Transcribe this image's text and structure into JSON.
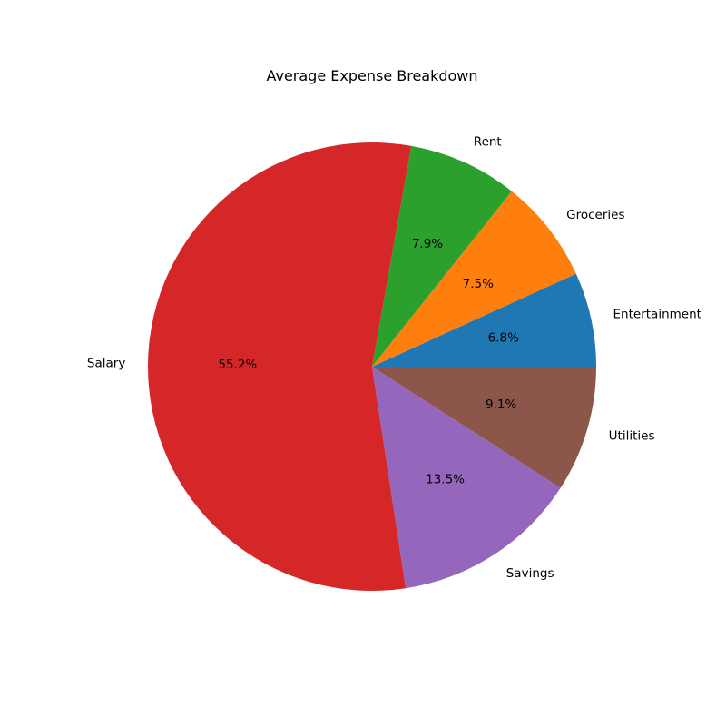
{
  "chart_data": {
    "type": "pie",
    "title": "Average Expense Breakdown",
    "slices": [
      {
        "label": "Entertainment",
        "value": 6.8,
        "pct_label": "6.8%",
        "color": "#1f77b4"
      },
      {
        "label": "Groceries",
        "value": 7.5,
        "pct_label": "7.5%",
        "color": "#ff7f0e"
      },
      {
        "label": "Rent",
        "value": 7.9,
        "pct_label": "7.9%",
        "color": "#2ca02c"
      },
      {
        "label": "Salary",
        "value": 55.2,
        "pct_label": "55.2%",
        "color": "#d62728"
      },
      {
        "label": "Savings",
        "value": 13.5,
        "pct_label": "13.5%",
        "color": "#9467bd"
      },
      {
        "label": "Utilities",
        "value": 9.1,
        "pct_label": "9.1%",
        "color": "#8c564b"
      }
    ],
    "start_angle_deg": 0,
    "direction": "counterclockwise",
    "legend": "none"
  }
}
